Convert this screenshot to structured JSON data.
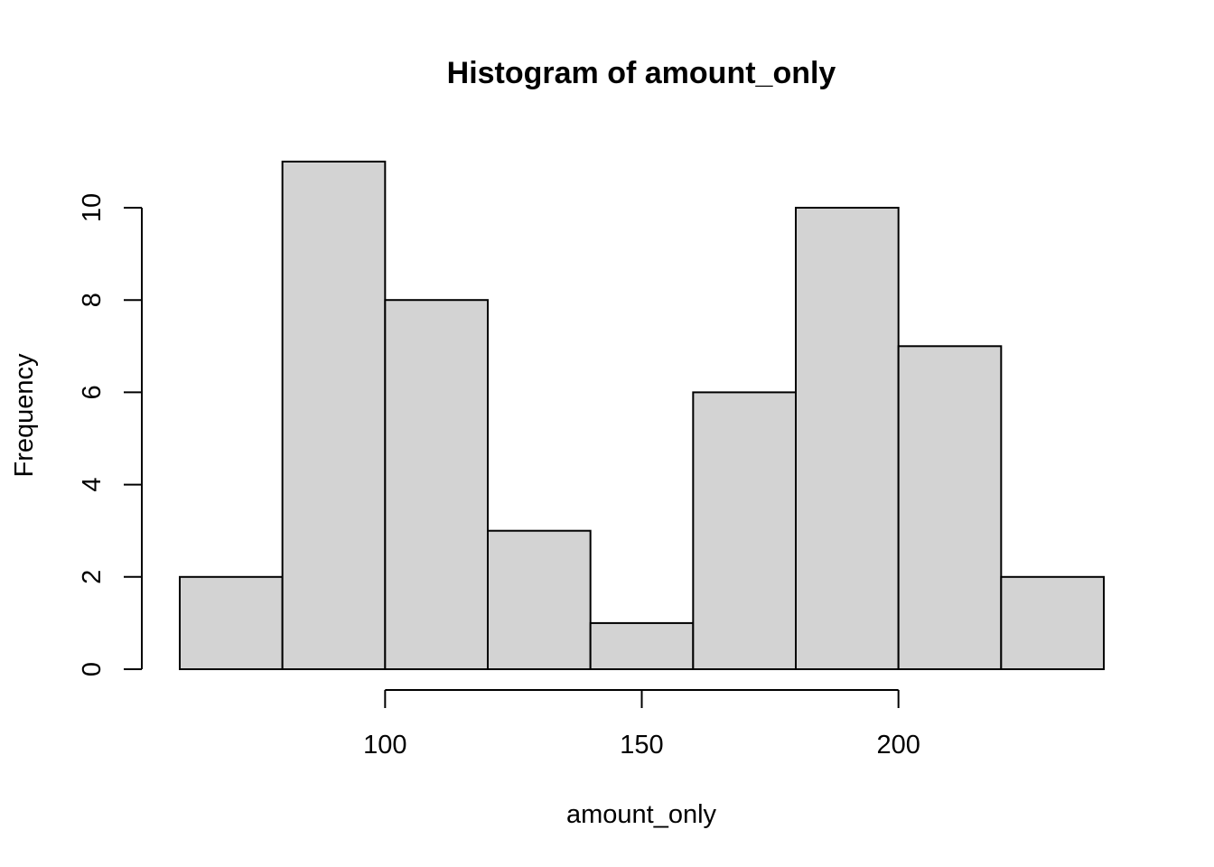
{
  "chart_data": {
    "type": "bar",
    "title": "Histogram of amount_only",
    "xlabel": "amount_only",
    "ylabel": "Frequency",
    "bin_edges": [
      60,
      80,
      100,
      120,
      140,
      160,
      180,
      200,
      220,
      240
    ],
    "values": [
      2,
      11,
      8,
      3,
      1,
      6,
      10,
      7,
      2
    ],
    "xticks": [
      100,
      150,
      200
    ],
    "xtick_labels": [
      "100",
      "150",
      "200"
    ],
    "yticks": [
      0,
      2,
      4,
      6,
      8,
      10
    ],
    "ytick_labels": [
      "0",
      "2",
      "4",
      "6",
      "8",
      "10"
    ],
    "xlim": [
      60,
      240
    ],
    "ylim": [
      0,
      11
    ],
    "grid": false,
    "bar_color": "#d3d3d3",
    "border_color": "#000000"
  }
}
